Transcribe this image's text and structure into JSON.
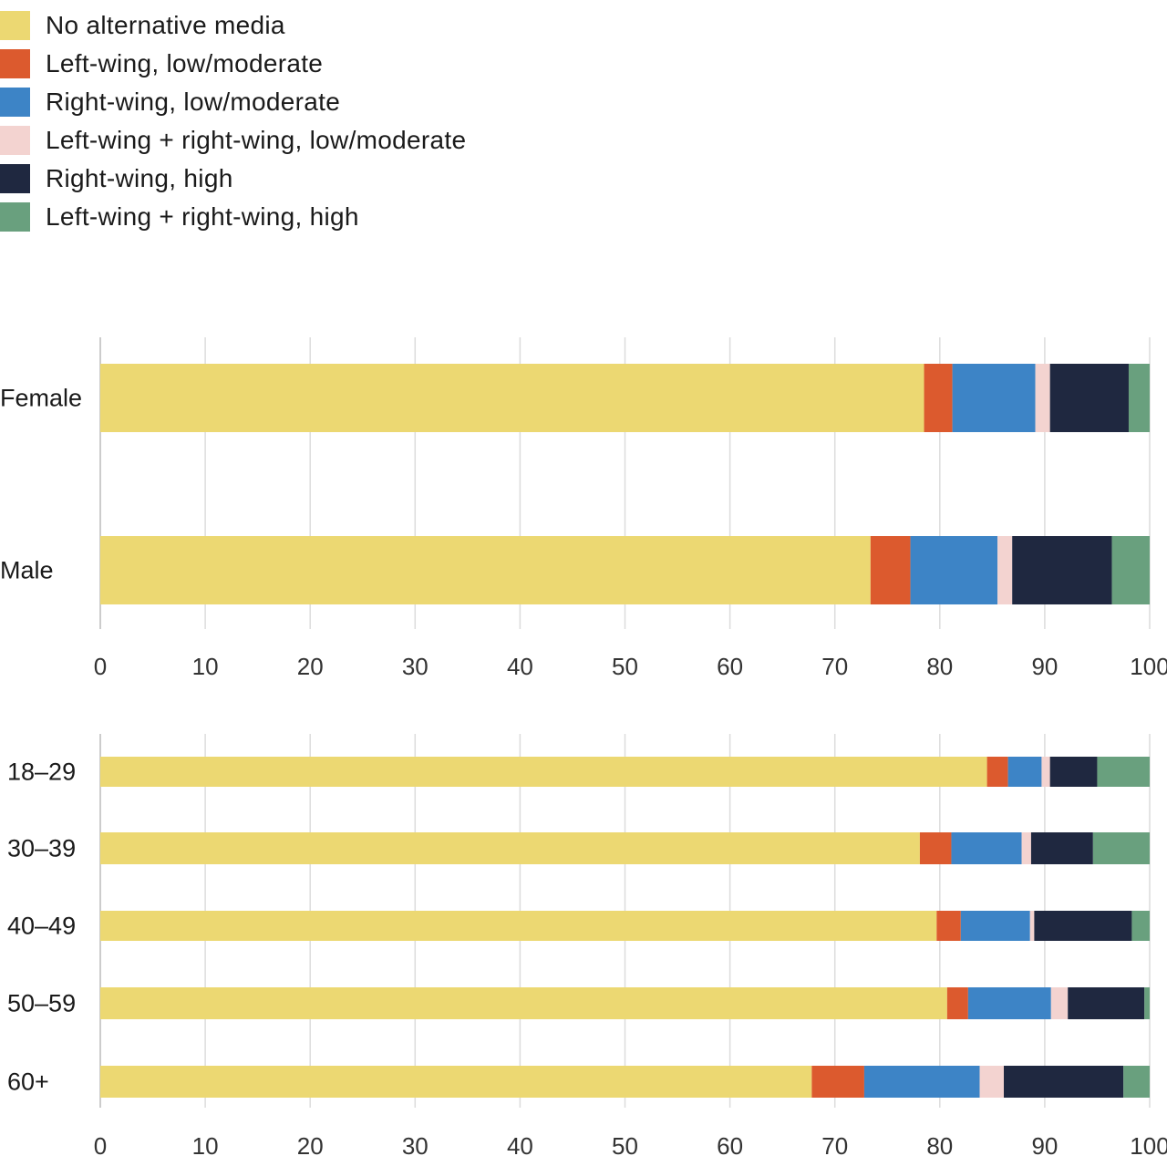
{
  "chart_data": [
    {
      "type": "bar",
      "orientation": "horizontal",
      "stacked": true,
      "categories": [
        "Female",
        "Male"
      ],
      "series": [
        {
          "name": "No alternative media",
          "color": "#ecd872",
          "values": [
            78.5,
            73.4
          ]
        },
        {
          "name": "Left-wing, low/moderate",
          "color": "#dc5a2e",
          "values": [
            2.7,
            3.8
          ]
        },
        {
          "name": "Right-wing, low/moderate",
          "color": "#3d84c6",
          "values": [
            7.9,
            8.3
          ]
        },
        {
          "name": "Left-wing + right-wing, low/moderate",
          "color": "#f3d3d0",
          "values": [
            1.4,
            1.4
          ]
        },
        {
          "name": "Right-wing, high",
          "color": "#1f2840",
          "values": [
            7.5,
            9.5
          ]
        },
        {
          "name": "Left-wing + right-wing, high",
          "color": "#69a07e",
          "values": [
            2.0,
            3.6
          ]
        }
      ],
      "xlim": [
        0,
        100
      ],
      "xticks": [
        "0",
        "10",
        "20",
        "30",
        "40",
        "50",
        "60",
        "70",
        "80",
        "90",
        "100"
      ],
      "grid": true,
      "legend": "top-left"
    },
    {
      "type": "bar",
      "orientation": "horizontal",
      "stacked": true,
      "categories": [
        "18–29",
        "30–39",
        "40–49",
        "50–59",
        "60+"
      ],
      "series": [
        {
          "name": "No alternative media",
          "color": "#ecd872",
          "values": [
            84.5,
            78.1,
            79.7,
            80.7,
            67.8
          ]
        },
        {
          "name": "Left-wing, low/moderate",
          "color": "#dc5a2e",
          "values": [
            2.0,
            3.0,
            2.3,
            2.0,
            5.0
          ]
        },
        {
          "name": "Right-wing, low/moderate",
          "color": "#3d84c6",
          "values": [
            3.2,
            6.7,
            6.6,
            7.9,
            11.0
          ]
        },
        {
          "name": "Left-wing + right-wing, low/moderate",
          "color": "#f3d3d0",
          "values": [
            0.8,
            0.9,
            0.4,
            1.6,
            2.3
          ]
        },
        {
          "name": "Right-wing, high",
          "color": "#1f2840",
          "values": [
            4.5,
            5.9,
            9.3,
            7.3,
            11.4
          ]
        },
        {
          "name": "Left-wing + right-wing, high",
          "color": "#69a07e",
          "values": [
            5.0,
            5.4,
            1.7,
            0.5,
            2.5
          ]
        }
      ],
      "xlim": [
        0,
        100
      ],
      "xticks": [
        "0",
        "10",
        "20",
        "30",
        "40",
        "50",
        "60",
        "70",
        "80",
        "90",
        "100"
      ],
      "grid": true
    }
  ]
}
